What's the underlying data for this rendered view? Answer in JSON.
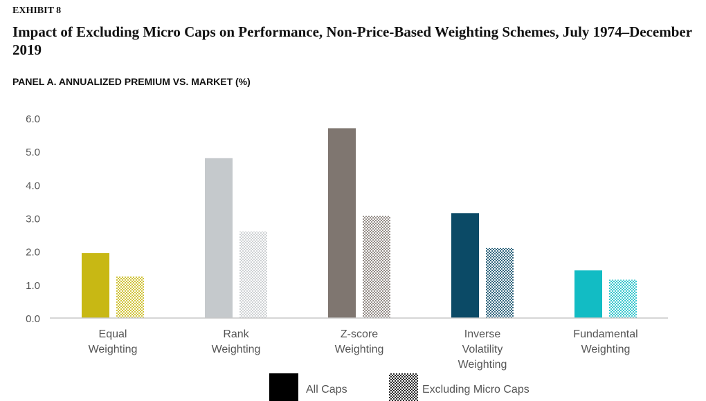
{
  "header": {
    "exhibit": "EXHIBIT 8",
    "title": "Impact of Excluding Micro Caps on Performance, Non-Price-Based Weighting Schemes, July 1974–December 2019",
    "panel": "PANEL A. ANNUALIZED PREMIUM VS. MARKET (%)"
  },
  "chart_data": {
    "type": "bar",
    "categories": [
      [
        "Equal",
        "Weighting"
      ],
      [
        "Rank",
        "Weighting"
      ],
      [
        "Z-score",
        "Weighting"
      ],
      [
        "Inverse",
        "Volatility",
        "Weighting"
      ],
      [
        "Fundamental",
        "Weighting"
      ]
    ],
    "category_colors": [
      "#c8b814",
      "#c5c9cc",
      "#7f7670",
      "#0b4a66",
      "#12bcc4"
    ],
    "series": [
      {
        "name": "All Caps",
        "style": "solid",
        "values": [
          1.95,
          4.8,
          5.7,
          3.15,
          1.43
        ]
      },
      {
        "name": "Excluding Micro Caps",
        "style": "patterned",
        "values": [
          1.25,
          2.6,
          3.07,
          2.1,
          1.15
        ]
      }
    ],
    "y_ticks": [
      "0.0",
      "1.0",
      "2.0",
      "3.0",
      "4.0",
      "5.0",
      "6.0"
    ],
    "ylim": [
      0,
      6
    ],
    "grid": false,
    "legend_position": "bottom"
  }
}
